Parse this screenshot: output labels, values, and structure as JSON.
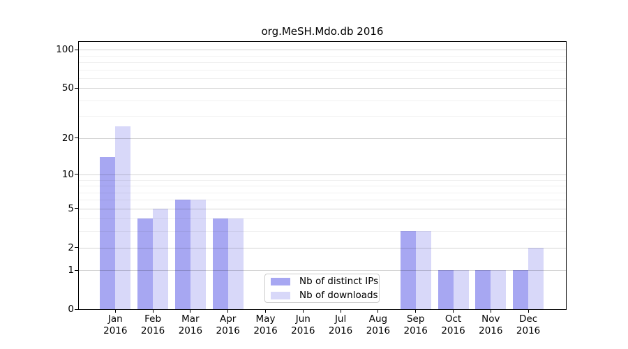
{
  "title": "org.MeSH.Mdo.db 2016",
  "chart_data": {
    "type": "bar",
    "title": "org.MeSH.Mdo.db 2016",
    "x_year": "2016",
    "categories": [
      "Jan",
      "Feb",
      "Mar",
      "Apr",
      "May",
      "Jun",
      "Jul",
      "Aug",
      "Sep",
      "Oct",
      "Nov",
      "Dec"
    ],
    "series": [
      {
        "name": "Nb of distinct IPs",
        "color": "#a7a7f2",
        "values": [
          14,
          4,
          6,
          4,
          0,
          0,
          0,
          0,
          3,
          1,
          1,
          1
        ]
      },
      {
        "name": "Nb of downloads",
        "color": "#d8d8f9",
        "values": [
          25,
          5,
          6,
          4,
          0,
          0,
          0,
          0,
          3,
          1,
          1,
          2
        ]
      }
    ],
    "yscale": "log1p",
    "ylim": [
      0,
      114
    ],
    "ytick_values": [
      0,
      1,
      2,
      5,
      10,
      20,
      50,
      100
    ],
    "ytick_labels": [
      "0",
      "1",
      "2",
      "5",
      "10",
      "20",
      "50",
      "100"
    ],
    "minor_grid_values": [
      3,
      4,
      6,
      7,
      8,
      9,
      30,
      40,
      60,
      70,
      80,
      90
    ],
    "grid": "on",
    "legend_position": "lower center",
    "xlabel": "",
    "ylabel": ""
  }
}
